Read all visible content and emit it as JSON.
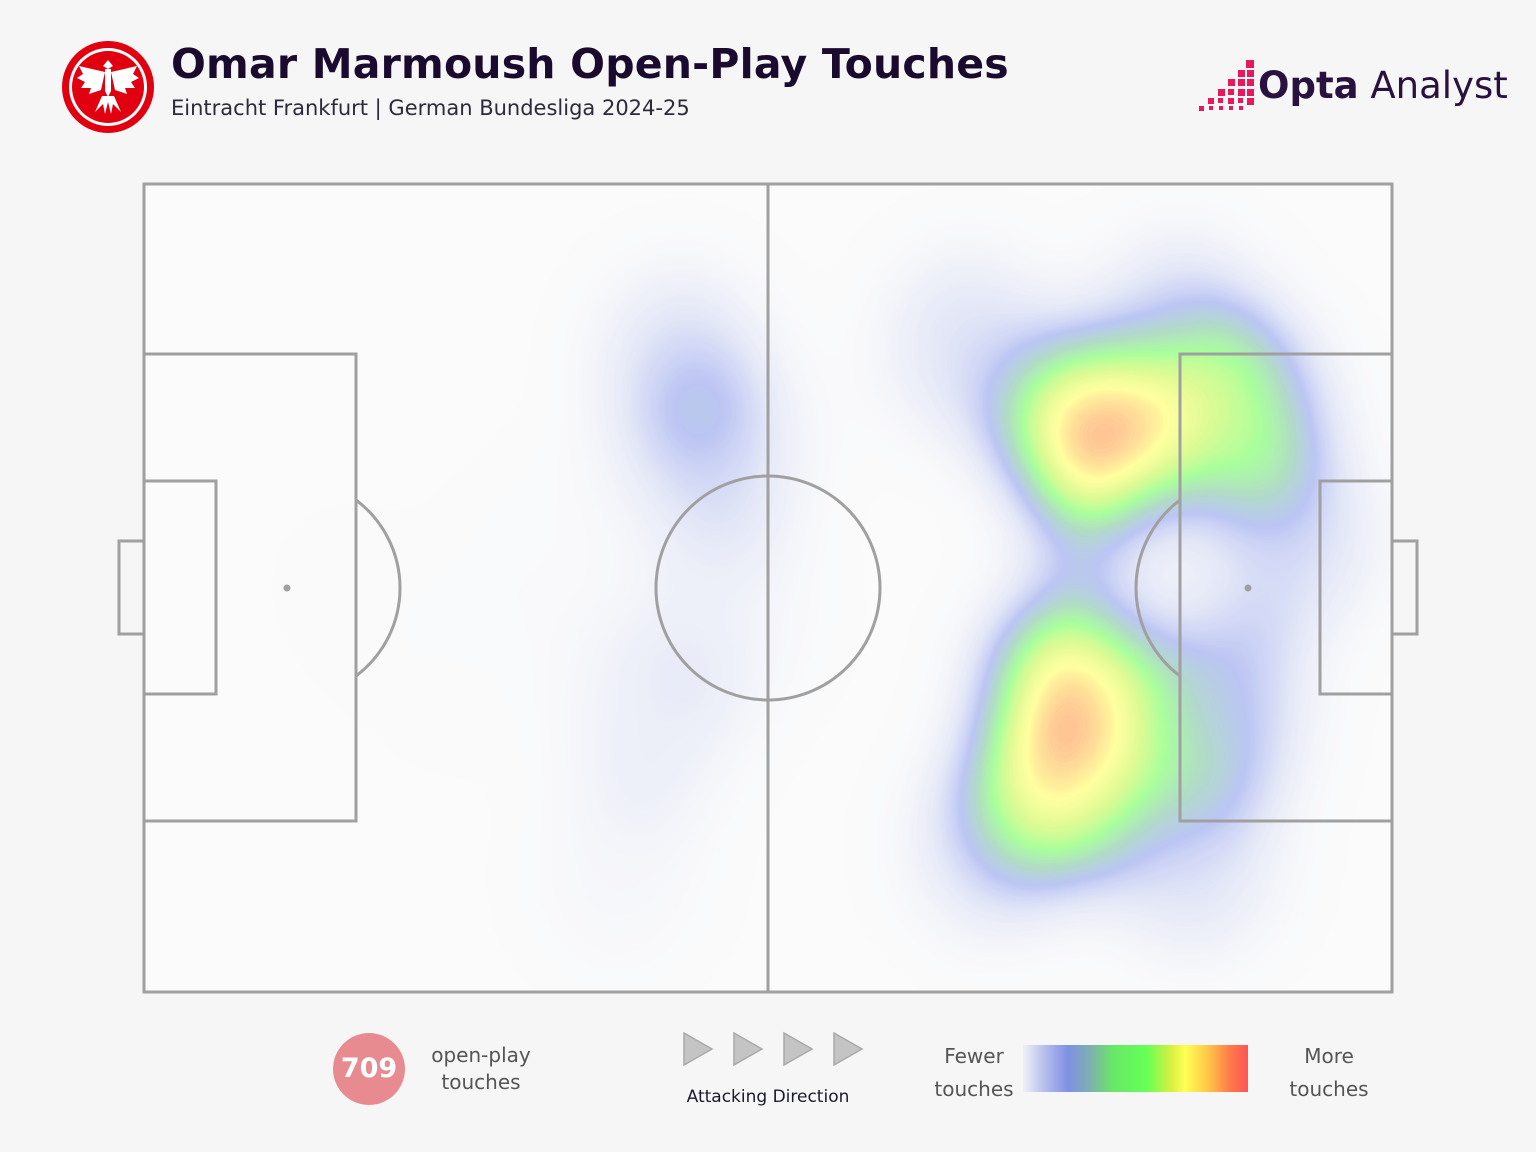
{
  "header": {
    "title": "Omar Marmoush Open-Play Touches",
    "subtitle": "Eintracht Frankfurt | German Bundesliga 2024-25",
    "brand": "Opta Analyst",
    "brand_bold": "Opta",
    "brand_light": "Analyst",
    "crest": "eintracht-frankfurt-eagle-crest"
  },
  "colors": {
    "background": "#f6f6f6",
    "pitch_lines": "#a0a0a0",
    "badge": "#e88b91",
    "title": "#1a0a2e",
    "brand": "#2a1240",
    "brand_accent": "#e6195c",
    "crest_red": "#e1000f"
  },
  "stats": {
    "touches_count": "709",
    "touches_label_line1": "open-play",
    "touches_label_line2": "touches"
  },
  "direction": {
    "label": "Attacking Direction",
    "arrow_icon": "triangle-right-icon",
    "arrow_count": 4
  },
  "legend": {
    "fewer_line1": "Fewer",
    "fewer_line2": "touches",
    "more_line1": "More",
    "more_line2": "touches"
  },
  "chart_data": {
    "type": "heatmap",
    "title": "Omar Marmoush Open-Play Touches",
    "subtitle": "Eintracht Frankfurt | German Bundesliga 2024-25",
    "pitch": "football pitch, horizontal, attacking left to right",
    "x_range": [
      0,
      100
    ],
    "y_range": [
      0,
      100
    ],
    "color_scale": [
      "#dde0f2",
      "#7f90e6",
      "#66ff55",
      "#ffff55",
      "#ff5555"
    ],
    "legend": [
      "Fewer touches",
      "More touches"
    ],
    "total_touches": 709,
    "hotspots": [
      {
        "x": 76,
        "y": 32,
        "intensity": 1.0
      },
      {
        "x": 74,
        "y": 62,
        "intensity": 0.92
      },
      {
        "x": 73,
        "y": 74,
        "intensity": 0.82
      },
      {
        "x": 88,
        "y": 28,
        "intensity": 0.72
      },
      {
        "x": 86,
        "y": 66,
        "intensity": 0.58
      },
      {
        "x": 92,
        "y": 44,
        "intensity": 0.45
      },
      {
        "x": 66,
        "y": 20,
        "intensity": 0.42
      },
      {
        "x": 83,
        "y": 18,
        "intensity": 0.45
      },
      {
        "x": 84,
        "y": 84,
        "intensity": 0.42
      },
      {
        "x": 68,
        "y": 82,
        "intensity": 0.4
      },
      {
        "x": 43,
        "y": 22,
        "intensity": 0.42
      },
      {
        "x": 46,
        "y": 34,
        "intensity": 0.4
      },
      {
        "x": 41,
        "y": 66,
        "intensity": 0.3
      },
      {
        "x": 47,
        "y": 53,
        "intensity": 0.2
      },
      {
        "x": 38,
        "y": 86,
        "intensity": 0.18
      },
      {
        "x": 33,
        "y": 44,
        "intensity": 0.1
      },
      {
        "x": 25,
        "y": 60,
        "intensity": 0.06
      },
      {
        "x": 16,
        "y": 50,
        "intensity": 0.04
      }
    ]
  }
}
